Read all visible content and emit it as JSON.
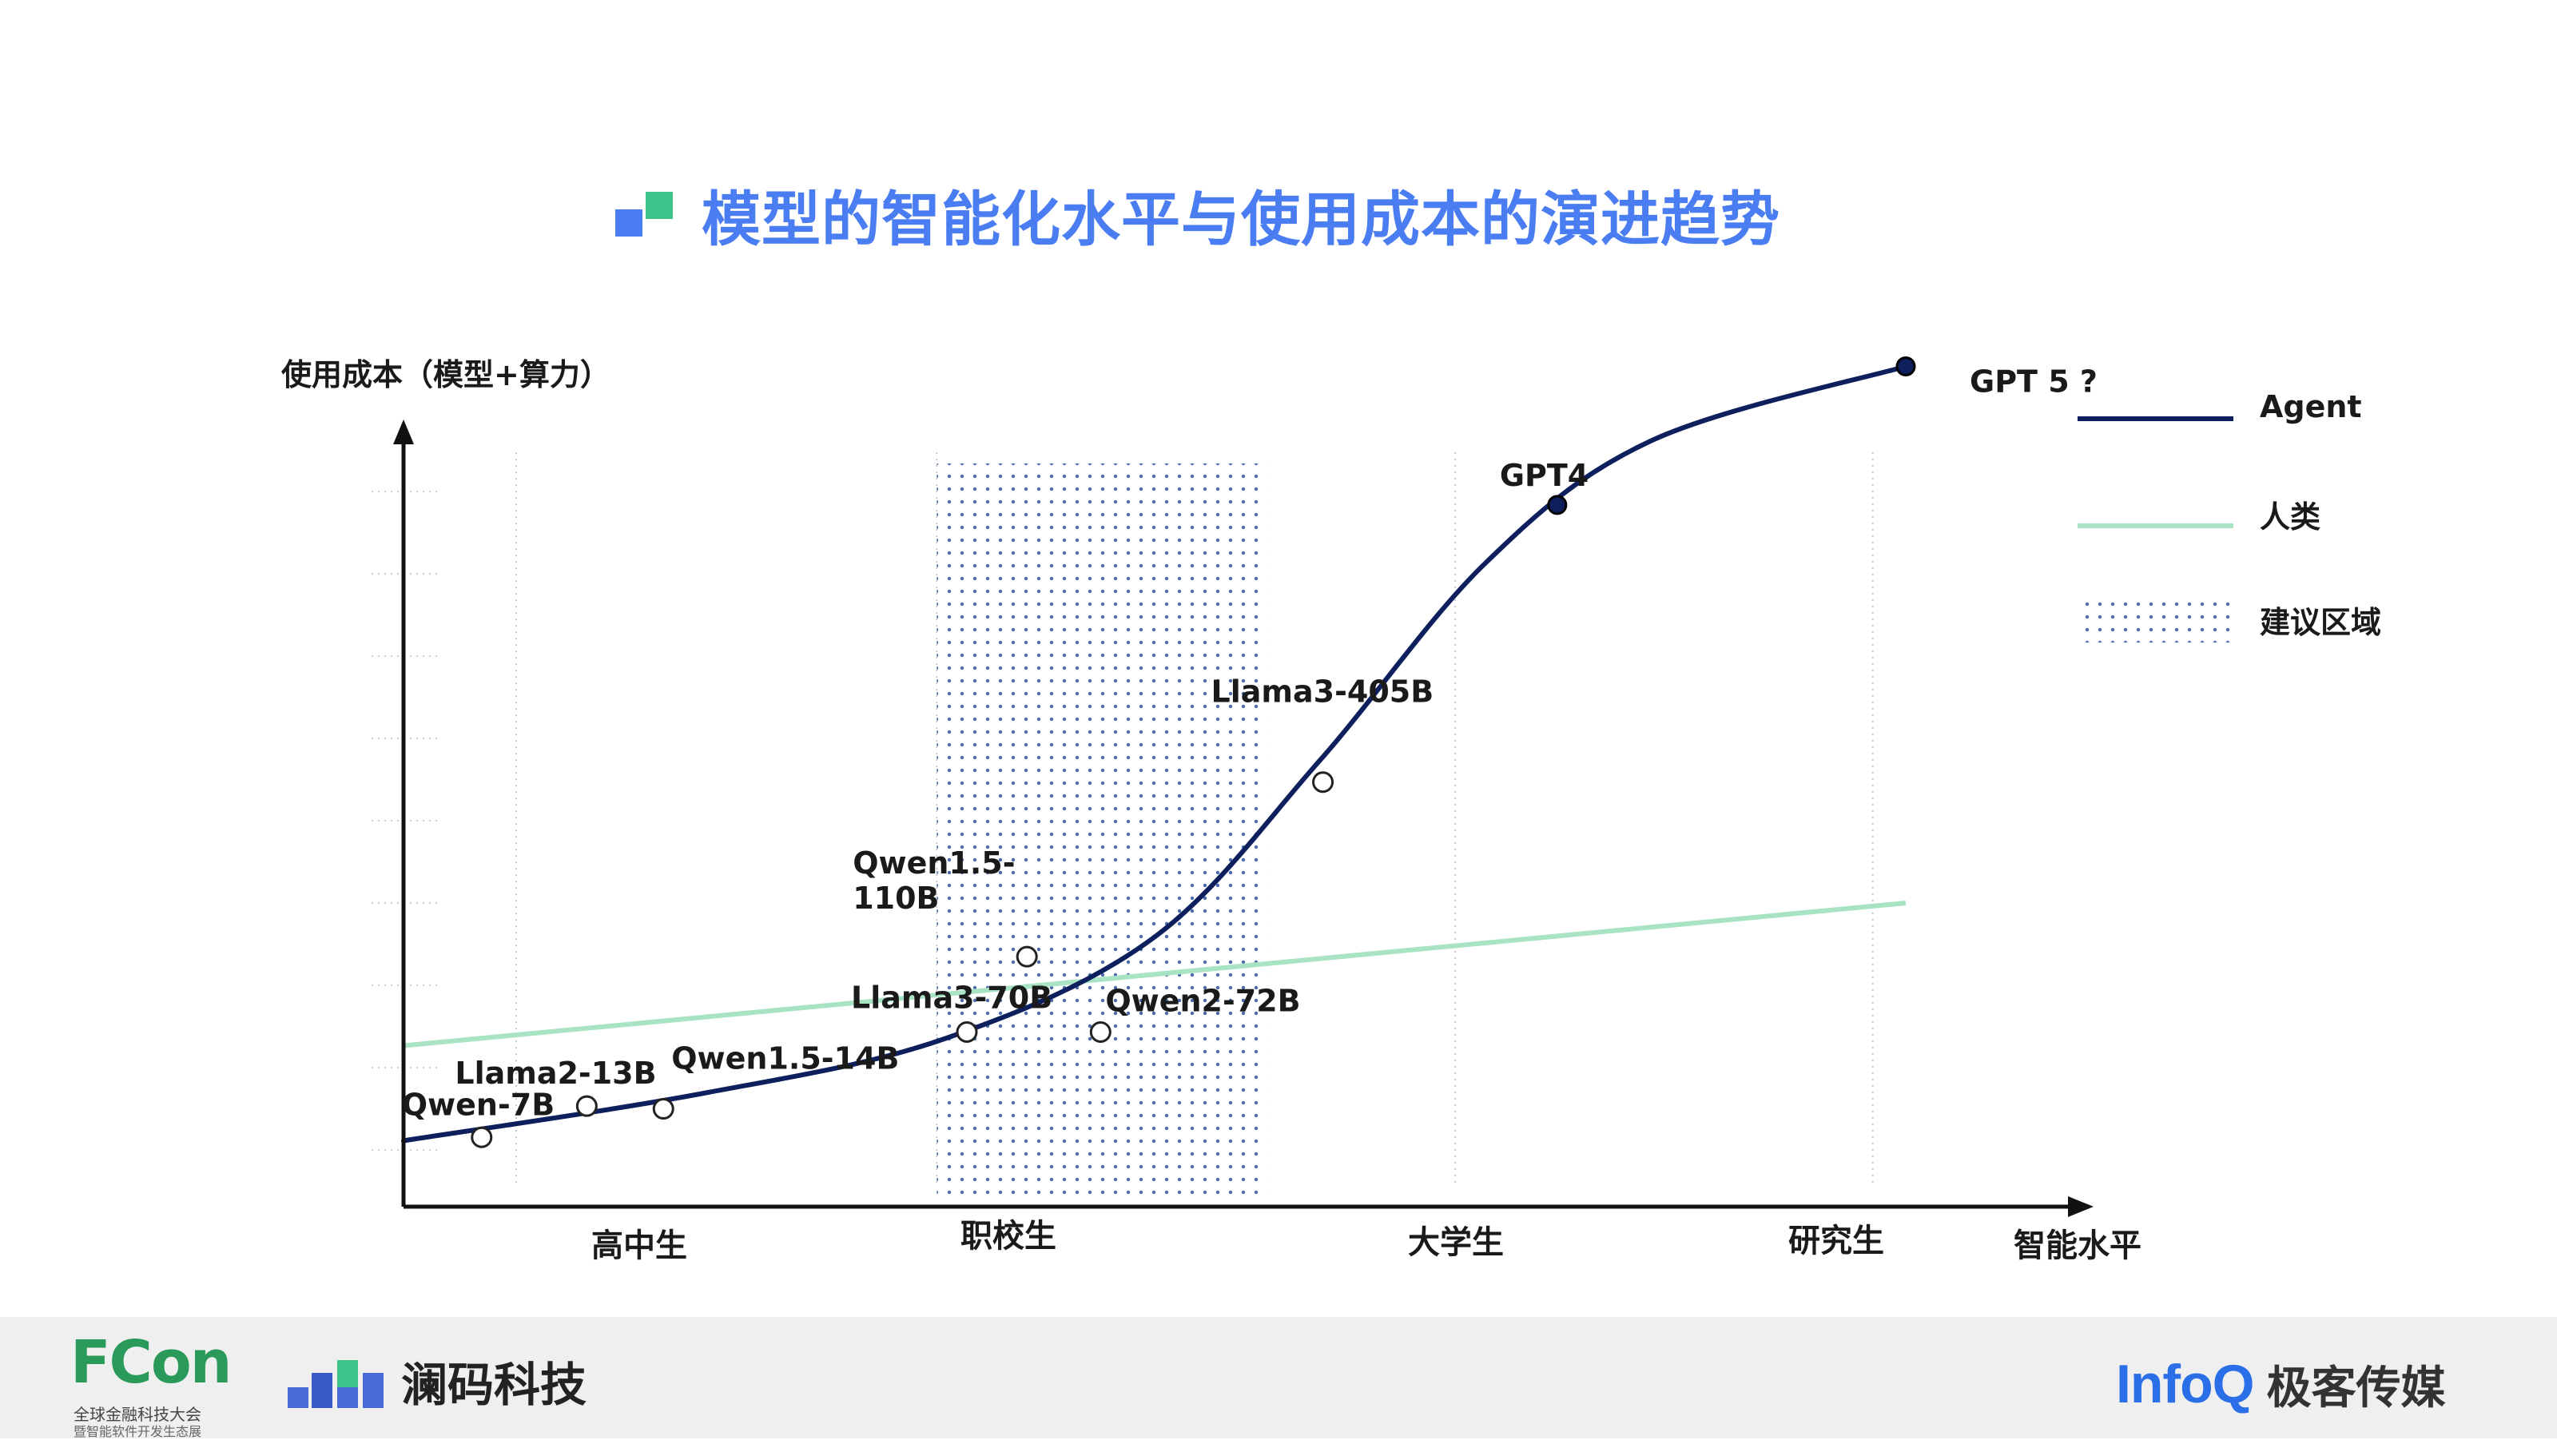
{
  "title": "模型的智能化水平与使用成本的演进趋势",
  "colors": {
    "title": "#4a7cf2",
    "agent": "#0d1f5c",
    "human": "#a8e3c4",
    "region_dots": "#4a6aa8",
    "axis": "#111111"
  },
  "chart_data": {
    "type": "line",
    "ylabel": "使用成本（模型+算力）",
    "xlabel": "智能水平",
    "x_categories": [
      "高中生",
      "职校生",
      "大学生",
      "研究生"
    ],
    "legend": {
      "placement": "top-right",
      "entries": [
        "Agent",
        "人类",
        "建议区域"
      ]
    },
    "series": [
      {
        "name": "Agent",
        "kind": "curve",
        "points": [
          {
            "x": 0.0,
            "y": 0.05
          },
          {
            "x": 0.2,
            "y": 0.12
          },
          {
            "x": 0.36,
            "y": 0.2
          },
          {
            "x": 0.5,
            "y": 0.35
          },
          {
            "x": 0.61,
            "y": 0.61
          },
          {
            "x": 0.72,
            "y": 0.9
          },
          {
            "x": 0.83,
            "y": 1.08
          },
          {
            "x": 1.0,
            "y": 1.19
          }
        ]
      },
      {
        "name": "人类",
        "kind": "line",
        "points": [
          {
            "x": 0.0,
            "y": 0.19
          },
          {
            "x": 1.0,
            "y": 0.4
          }
        ]
      }
    ],
    "region": {
      "name": "建议区域",
      "x_from": 0.355,
      "x_to": 0.575
    },
    "models": [
      {
        "label": "Qwen-7B",
        "x": 0.052,
        "y": 0.055,
        "filled": false
      },
      {
        "label": "Llama2-13B",
        "x": 0.122,
        "y": 0.101,
        "filled": false
      },
      {
        "label": "Qwen1.5-14B",
        "x": 0.173,
        "y": 0.097,
        "filled": false
      },
      {
        "label": "Llama3-70B",
        "x": 0.375,
        "y": 0.21,
        "filled": false
      },
      {
        "label": "Qwen1.5-110B",
        "x": 0.415,
        "y": 0.321,
        "filled": false
      },
      {
        "label": "Qwen2-72B",
        "x": 0.464,
        "y": 0.21,
        "filled": false
      },
      {
        "label": "Llama3-405B",
        "x": 0.612,
        "y": 0.578,
        "filled": false
      },
      {
        "label": "GPT4",
        "x": 0.768,
        "y": 0.986,
        "filled": true
      },
      {
        "label": "GPT 5 ?",
        "x": 1.0,
        "y": 1.19,
        "filled": true
      }
    ]
  },
  "footer": {
    "fcon_name": "FCon",
    "fcon_sub1": "全球金融科技大会",
    "fcon_sub2": "暨智能软件开发生态展",
    "lanma_name": "澜码科技",
    "infoq_name": "InfoQ",
    "geek_name": "极客传媒"
  }
}
